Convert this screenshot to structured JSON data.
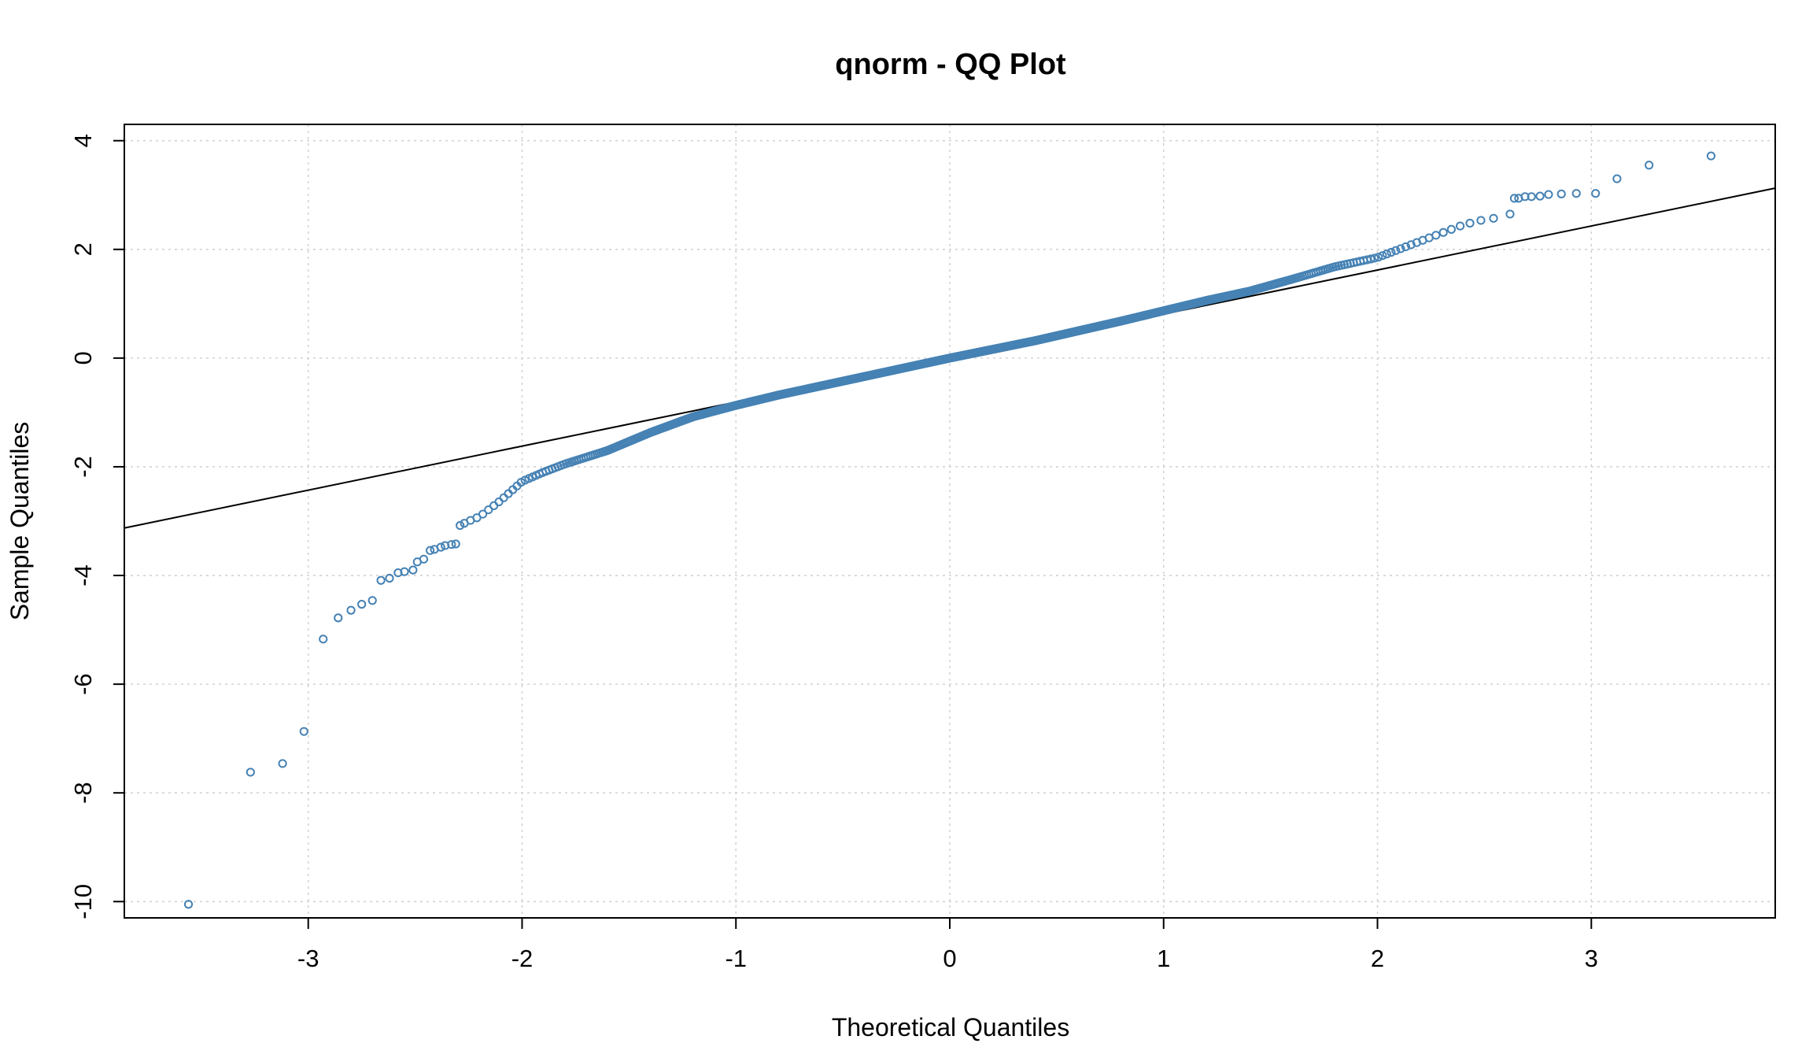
{
  "chart_data": {
    "type": "scatter",
    "title": "qnorm - QQ Plot",
    "xlabel": "Theoretical Quantiles",
    "ylabel": "Sample Quantiles",
    "xlim": [
      -3.86,
      3.86
    ],
    "ylim": [
      -10.3,
      4.3
    ],
    "x_ticks": [
      -3,
      -2,
      -1,
      0,
      1,
      2,
      3
    ],
    "y_ticks": [
      -10,
      -8,
      -6,
      -4,
      -2,
      0,
      2,
      4
    ],
    "x_tick_labels": [
      "-3",
      "-2",
      "-1",
      "0",
      "1",
      "2",
      "3"
    ],
    "y_tick_labels": [
      "-10",
      "-8",
      "-6",
      "-4",
      "-2",
      "0",
      "2",
      "4"
    ],
    "grid": true,
    "point_color": "#4682b4",
    "line_color": "#000000",
    "reference_line": {
      "intercept": 0.0,
      "slope": 0.81
    },
    "sample_size_estimate": 1000,
    "tail_points": [
      [
        -3.56,
        -10.05
      ],
      [
        -3.27,
        -7.62
      ],
      [
        -3.12,
        -7.46
      ],
      [
        -3.02,
        -6.87
      ],
      [
        -2.93,
        -5.17
      ],
      [
        -2.86,
        -4.78
      ],
      [
        -2.8,
        -4.64
      ],
      [
        -2.75,
        -4.53
      ],
      [
        -2.7,
        -4.46
      ],
      [
        -2.66,
        -4.09
      ],
      [
        -2.62,
        -4.05
      ],
      [
        -2.58,
        -3.95
      ],
      [
        -2.55,
        -3.93
      ],
      [
        -2.51,
        -3.9
      ],
      [
        -2.49,
        -3.75
      ],
      [
        -2.46,
        -3.7
      ],
      [
        -2.43,
        -3.54
      ],
      [
        -2.41,
        -3.52
      ],
      [
        -2.38,
        -3.48
      ],
      [
        -2.36,
        -3.45
      ],
      [
        -2.33,
        -3.43
      ],
      [
        -2.31,
        -3.42
      ],
      [
        -2.29,
        -3.08
      ],
      [
        -2.27,
        -3.04
      ],
      [
        2.62,
        2.65
      ],
      [
        2.64,
        2.94
      ],
      [
        2.66,
        2.94
      ],
      [
        2.69,
        2.97
      ],
      [
        2.72,
        2.97
      ],
      [
        2.76,
        2.98
      ],
      [
        2.8,
        3.01
      ],
      [
        2.86,
        3.02
      ],
      [
        2.93,
        3.03
      ],
      [
        3.02,
        3.03
      ],
      [
        3.12,
        3.3
      ],
      [
        3.27,
        3.55
      ],
      [
        3.56,
        3.72
      ]
    ],
    "body_knots": [
      [
        -2.25,
        -3.0
      ],
      [
        -2.2,
        -2.92
      ],
      [
        -2.1,
        -2.62
      ],
      [
        -2.0,
        -2.27
      ],
      [
        -1.9,
        -2.1
      ],
      [
        -1.8,
        -1.95
      ],
      [
        -1.6,
        -1.7
      ],
      [
        -1.4,
        -1.37
      ],
      [
        -1.2,
        -1.08
      ],
      [
        -1.0,
        -0.87
      ],
      [
        -0.8,
        -0.68
      ],
      [
        -0.6,
        -0.51
      ],
      [
        -0.4,
        -0.34
      ],
      [
        -0.2,
        -0.17
      ],
      [
        0.0,
        0.0
      ],
      [
        0.2,
        0.16
      ],
      [
        0.4,
        0.32
      ],
      [
        0.6,
        0.5
      ],
      [
        0.8,
        0.68
      ],
      [
        1.0,
        0.87
      ],
      [
        1.2,
        1.06
      ],
      [
        1.4,
        1.23
      ],
      [
        1.6,
        1.45
      ],
      [
        1.8,
        1.68
      ],
      [
        2.0,
        1.85
      ],
      [
        2.2,
        2.15
      ],
      [
        2.4,
        2.45
      ],
      [
        2.5,
        2.55
      ],
      [
        2.6,
        2.6
      ]
    ]
  }
}
